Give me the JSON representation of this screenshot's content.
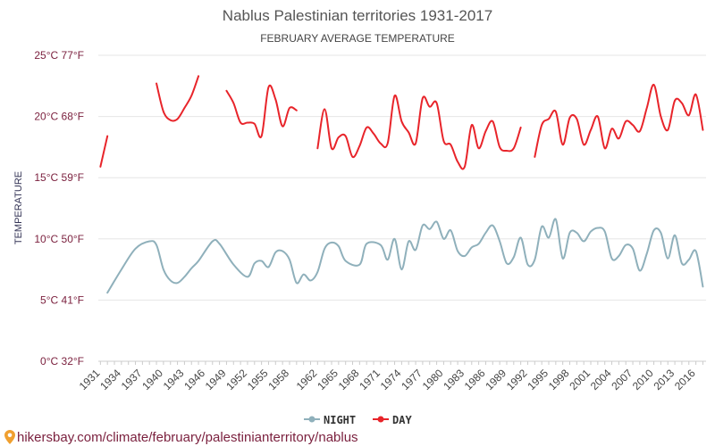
{
  "header": {
    "title": "Nablus Palestinian territories 1931-2017",
    "subtitle": "FEBRUARY AVERAGE TEMPERATURE"
  },
  "source": {
    "text": "hikersbay.com/climate/february/palestinianterritory/nablus",
    "pin_icon": "location-pin-icon"
  },
  "chart_data": {
    "type": "line",
    "ylabel": "TEMPERATURE",
    "ylim": [
      0,
      25
    ],
    "yticks": [
      0,
      5,
      10,
      15,
      20,
      25
    ],
    "ytick_labels": [
      "0°C 32°F",
      "5°C 41°F",
      "10°C 50°F",
      "15°C 59°F",
      "20°C 68°F",
      "25°C 77°F"
    ],
    "xlim": [
      1931,
      2017
    ],
    "xticks": [
      1931,
      1934,
      1937,
      1940,
      1943,
      1946,
      1949,
      1952,
      1955,
      1958,
      1962,
      1965,
      1968,
      1971,
      1974,
      1977,
      1980,
      1983,
      1986,
      1989,
      1992,
      1995,
      1998,
      2001,
      2004,
      2007,
      2010,
      2013,
      2016
    ],
    "grid": true,
    "legend_position": "bottom-center",
    "series": [
      {
        "name": "NIGHT",
        "color": "#8fb0bb",
        "points": [
          [
            1932,
            5.6
          ],
          [
            1934,
            7.5
          ],
          [
            1936,
            9.2
          ],
          [
            1938,
            9.8
          ],
          [
            1939,
            9.5
          ],
          [
            1940,
            7.5
          ],
          [
            1941,
            6.6
          ],
          [
            1942,
            6.4
          ],
          [
            1943,
            6.9
          ],
          [
            1944,
            7.6
          ],
          [
            1945,
            8.2
          ],
          [
            1947,
            9.8
          ],
          [
            1948,
            9.6
          ],
          [
            1950,
            7.9
          ],
          [
            1952,
            6.9
          ],
          [
            1953,
            8.0
          ],
          [
            1954,
            8.2
          ],
          [
            1955,
            7.7
          ],
          [
            1956,
            8.9
          ],
          [
            1957,
            9.0
          ],
          [
            1958,
            8.3
          ],
          [
            1959,
            6.4
          ],
          [
            1960,
            7.1
          ],
          [
            1961,
            6.6
          ],
          [
            1962,
            7.3
          ],
          [
            1963,
            9.2
          ],
          [
            1964,
            9.7
          ],
          [
            1965,
            9.4
          ],
          [
            1966,
            8.2
          ],
          [
            1968,
            7.9
          ],
          [
            1969,
            9.6
          ],
          [
            1971,
            9.5
          ],
          [
            1972,
            8.3
          ],
          [
            1973,
            10.0
          ],
          [
            1974,
            7.5
          ],
          [
            1975,
            9.8
          ],
          [
            1976,
            9.1
          ],
          [
            1977,
            11.1
          ],
          [
            1978,
            10.8
          ],
          [
            1979,
            11.4
          ],
          [
            1980,
            10.0
          ],
          [
            1981,
            10.7
          ],
          [
            1982,
            9.0
          ],
          [
            1983,
            8.6
          ],
          [
            1984,
            9.3
          ],
          [
            1985,
            9.6
          ],
          [
            1986,
            10.5
          ],
          [
            1987,
            11.1
          ],
          [
            1988,
            9.8
          ],
          [
            1989,
            8.0
          ],
          [
            1990,
            8.5
          ],
          [
            1991,
            10.1
          ],
          [
            1992,
            7.9
          ],
          [
            1993,
            8.3
          ],
          [
            1994,
            11.0
          ],
          [
            1995,
            10.1
          ],
          [
            1996,
            11.6
          ],
          [
            1997,
            8.4
          ],
          [
            1998,
            10.5
          ],
          [
            1999,
            10.5
          ],
          [
            2000,
            9.8
          ],
          [
            2001,
            10.6
          ],
          [
            2002,
            10.9
          ],
          [
            2003,
            10.6
          ],
          [
            2004,
            8.4
          ],
          [
            2005,
            8.6
          ],
          [
            2006,
            9.5
          ],
          [
            2007,
            9.2
          ],
          [
            2008,
            7.4
          ],
          [
            2009,
            8.8
          ],
          [
            2010,
            10.7
          ],
          [
            2011,
            10.5
          ],
          [
            2012,
            8.4
          ],
          [
            2013,
            10.3
          ],
          [
            2014,
            8.0
          ],
          [
            2015,
            8.3
          ],
          [
            2016,
            9.0
          ],
          [
            2017,
            6.1
          ]
        ]
      },
      {
        "name": "DAY",
        "color": "#e8242a",
        "segments": [
          [
            [
              1931,
              15.9
            ],
            [
              1932,
              18.4
            ]
          ],
          [
            [
              1939,
              22.7
            ],
            [
              1940,
              20.4
            ],
            [
              1941,
              19.7
            ],
            [
              1942,
              19.8
            ],
            [
              1943,
              20.7
            ],
            [
              1944,
              21.7
            ],
            [
              1945,
              23.3
            ]
          ],
          [
            [
              1949,
              22.1
            ],
            [
              1950,
              21.1
            ],
            [
              1951,
              19.5
            ],
            [
              1952,
              19.5
            ],
            [
              1953,
              19.4
            ],
            [
              1954,
              18.4
            ],
            [
              1955,
              22.4
            ],
            [
              1956,
              21.4
            ],
            [
              1957,
              19.2
            ],
            [
              1958,
              20.7
            ],
            [
              1959,
              20.5
            ]
          ],
          [
            [
              1962,
              17.4
            ],
            [
              1963,
              20.6
            ],
            [
              1964,
              17.4
            ],
            [
              1965,
              18.3
            ],
            [
              1966,
              18.4
            ],
            [
              1967,
              16.7
            ],
            [
              1968,
              17.6
            ],
            [
              1969,
              19.1
            ],
            [
              1970,
              18.6
            ],
            [
              1971,
              17.8
            ],
            [
              1972,
              17.8
            ],
            [
              1973,
              21.7
            ],
            [
              1974,
              19.6
            ],
            [
              1975,
              18.7
            ],
            [
              1976,
              17.8
            ],
            [
              1977,
              21.5
            ],
            [
              1978,
              20.8
            ],
            [
              1979,
              21.1
            ],
            [
              1980,
              18.0
            ],
            [
              1981,
              17.7
            ],
            [
              1982,
              16.3
            ],
            [
              1983,
              15.9
            ],
            [
              1984,
              19.3
            ],
            [
              1985,
              17.4
            ],
            [
              1986,
              18.8
            ],
            [
              1987,
              19.6
            ],
            [
              1988,
              17.5
            ],
            [
              1989,
              17.2
            ],
            [
              1990,
              17.4
            ],
            [
              1991,
              19.1
            ]
          ],
          [
            [
              1993,
              16.7
            ],
            [
              1994,
              19.3
            ],
            [
              1995,
              19.8
            ],
            [
              1996,
              20.4
            ],
            [
              1997,
              17.7
            ],
            [
              1998,
              19.9
            ],
            [
              1999,
              19.8
            ],
            [
              2000,
              17.7
            ],
            [
              2001,
              18.9
            ],
            [
              2002,
              20.0
            ],
            [
              2003,
              17.4
            ],
            [
              2004,
              19.0
            ],
            [
              2005,
              18.2
            ],
            [
              2006,
              19.6
            ],
            [
              2007,
              19.3
            ],
            [
              2008,
              18.8
            ],
            [
              2009,
              20.7
            ],
            [
              2010,
              22.6
            ],
            [
              2011,
              20.0
            ],
            [
              2012,
              18.9
            ],
            [
              2013,
              21.3
            ],
            [
              2014,
              21.1
            ],
            [
              2015,
              20.1
            ],
            [
              2016,
              21.8
            ],
            [
              2017,
              18.9
            ]
          ]
        ]
      }
    ]
  }
}
